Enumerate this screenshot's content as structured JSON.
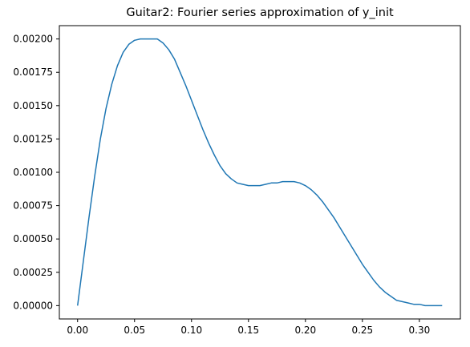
{
  "chart_data": {
    "type": "line",
    "title": "Guitar2: Fourier series approximation of y_init",
    "xlabel": "",
    "ylabel": "",
    "xlim": [
      -0.016,
      0.336
    ],
    "ylim": [
      -0.0001,
      0.0021
    ],
    "grid": false,
    "legend": "none",
    "x_ticks": [
      0.0,
      0.05,
      0.1,
      0.15,
      0.2,
      0.25,
      0.3
    ],
    "x_tick_labels": [
      "0.00",
      "0.05",
      "0.10",
      "0.15",
      "0.20",
      "0.25",
      "0.30"
    ],
    "y_ticks": [
      0.0,
      0.00025,
      0.0005,
      0.00075,
      0.001,
      0.00125,
      0.0015,
      0.00175,
      0.002
    ],
    "y_tick_labels": [
      "0.00000",
      "0.00025",
      "0.00050",
      "0.00075",
      "0.00100",
      "0.00125",
      "0.00150",
      "0.00175",
      "0.00200"
    ],
    "series": [
      {
        "color": "#1f77b4",
        "x": [
          0.0,
          0.005,
          0.01,
          0.015,
          0.02,
          0.025,
          0.03,
          0.035,
          0.04,
          0.045,
          0.05,
          0.055,
          0.06,
          0.065,
          0.07,
          0.075,
          0.08,
          0.085,
          0.09,
          0.095,
          0.1,
          0.105,
          0.11,
          0.115,
          0.12,
          0.125,
          0.13,
          0.135,
          0.14,
          0.145,
          0.15,
          0.155,
          0.16,
          0.165,
          0.17,
          0.175,
          0.18,
          0.185,
          0.19,
          0.195,
          0.2,
          0.205,
          0.21,
          0.215,
          0.22,
          0.225,
          0.23,
          0.235,
          0.24,
          0.245,
          0.25,
          0.255,
          0.26,
          0.265,
          0.27,
          0.275,
          0.28,
          0.285,
          0.29,
          0.295,
          0.3,
          0.305,
          0.31,
          0.315,
          0.32
        ],
        "y": [
          0.0,
          0.00033,
          0.00066,
          0.00097,
          0.00125,
          0.00148,
          0.00166,
          0.0018,
          0.0019,
          0.00196,
          0.00199,
          0.002,
          0.002,
          0.002,
          0.002,
          0.00197,
          0.00192,
          0.00185,
          0.00175,
          0.00165,
          0.00154,
          0.00143,
          0.00132,
          0.00122,
          0.00113,
          0.00105,
          0.00099,
          0.00095,
          0.00092,
          0.00091,
          0.0009,
          0.0009,
          0.0009,
          0.00091,
          0.00092,
          0.00092,
          0.00093,
          0.00093,
          0.00093,
          0.00092,
          0.0009,
          0.00087,
          0.00083,
          0.00078,
          0.00072,
          0.00066,
          0.00059,
          0.00052,
          0.00045,
          0.00038,
          0.00031,
          0.00025,
          0.00019,
          0.00014,
          0.0001,
          7e-05,
          4e-05,
          3e-05,
          2e-05,
          1e-05,
          1e-05,
          0.0,
          0.0,
          0.0,
          0.0
        ]
      }
    ]
  }
}
